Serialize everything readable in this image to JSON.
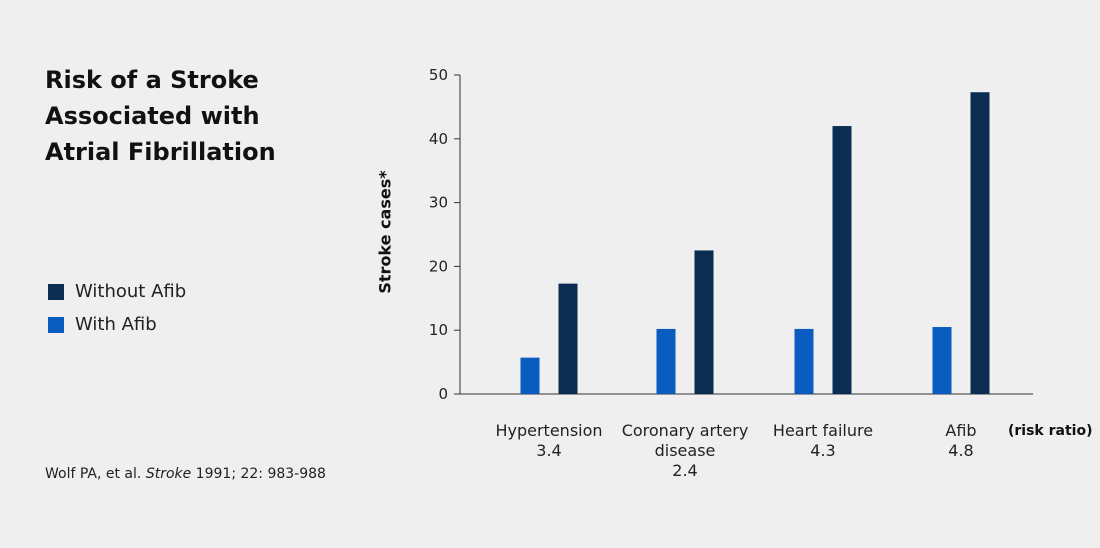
{
  "title_lines": [
    "Risk of a Stroke",
    "Associated with",
    "Atrial Fibrillation"
  ],
  "legend": [
    {
      "label": "Without Afib",
      "color": "#0b2d52"
    },
    {
      "label": "With Afib",
      "color": "#0a5cbf"
    }
  ],
  "citation": {
    "prefix": "Wolf PA, et al. ",
    "journal": "Stroke",
    "suffix": " 1991; 22: 983-988"
  },
  "ratio_note": "(risk ratio)",
  "chart_data": {
    "type": "bar",
    "ylabel": "Stroke cases*",
    "xlabel": "",
    "ylim": [
      0,
      50
    ],
    "yticks": [
      0,
      10,
      20,
      30,
      40,
      50
    ],
    "grid": false,
    "categories": [
      {
        "lines": [
          "Hypertension"
        ],
        "ratio": "3.4"
      },
      {
        "lines": [
          "Coronary artery",
          "disease"
        ],
        "ratio": "2.4"
      },
      {
        "lines": [
          "Heart failure"
        ],
        "ratio": "4.3"
      },
      {
        "lines": [
          "Afib"
        ],
        "ratio": "4.8"
      }
    ],
    "series": [
      {
        "name": "With Afib",
        "color": "#0a5cbf",
        "values": [
          5.7,
          10.2,
          10.2,
          10.5
        ]
      },
      {
        "name": "Without Afib",
        "color": "#0b2d52",
        "values": [
          17.3,
          22.5,
          42,
          47.3
        ]
      }
    ]
  }
}
